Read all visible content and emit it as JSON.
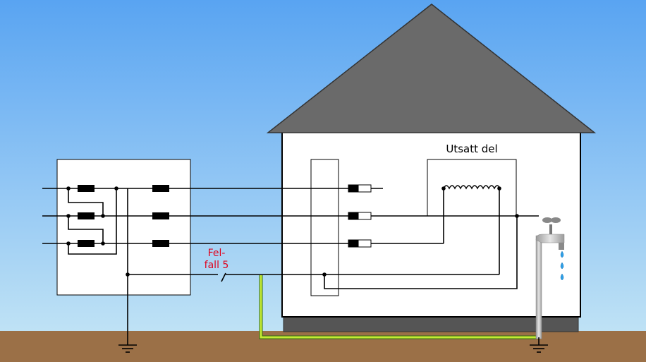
{
  "labels": {
    "exposed_part": "Utsatt del",
    "fault_line1": "Fel-",
    "fault_line2": "fall 5"
  },
  "colors": {
    "sky_top": "#59a4f2",
    "sky_bottom": "#bfe2f5",
    "ground": "#9b7047",
    "roof": "#6a6a6a",
    "foundation": "#555555",
    "wall": "#ffffff",
    "wire": "#000000",
    "fault_label": "#e0001b",
    "earth_conductor": "#c4e934",
    "water_drop": "#2fa0e8",
    "pipe": "#bdbdbd"
  }
}
